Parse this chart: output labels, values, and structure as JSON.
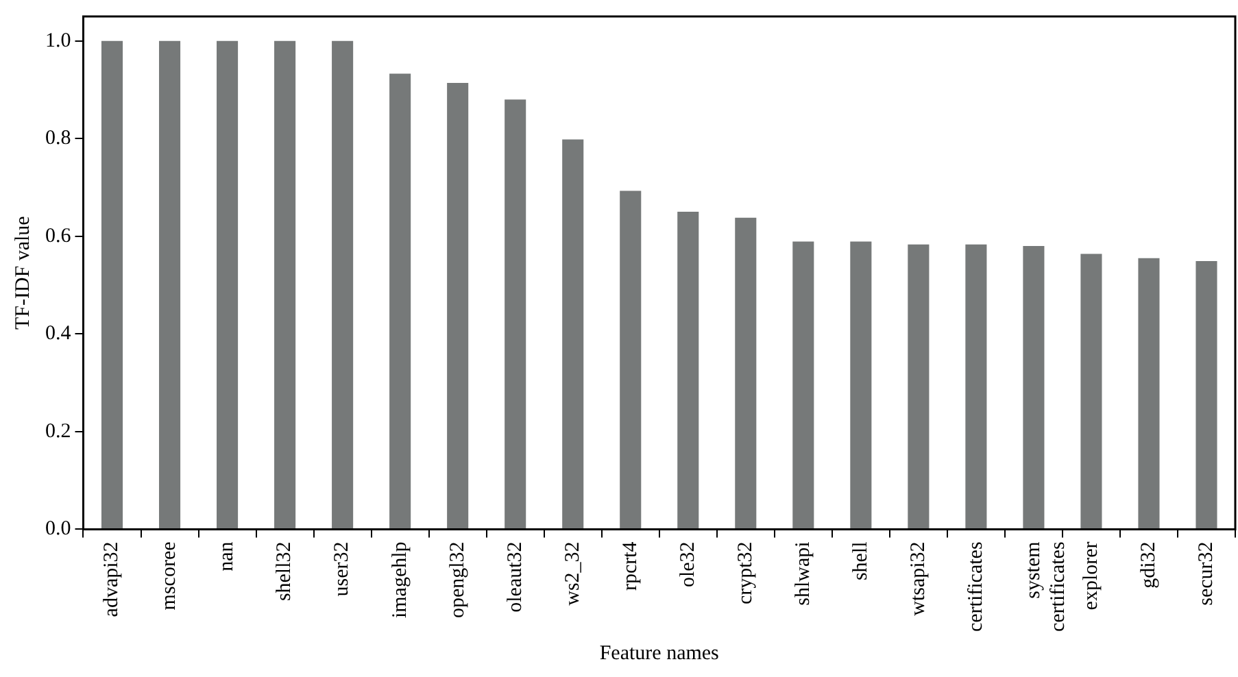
{
  "chart_data": {
    "type": "bar",
    "xlabel": "Feature names",
    "ylabel": "TF-IDF value",
    "categories": [
      "advapi32",
      "mscoree",
      "nan",
      "shell32",
      "user32",
      "imagehlp",
      "opengl32",
      "oleaut32",
      "ws2_32",
      "rpcrt4",
      "ole32",
      "crypt32",
      "shlwapi",
      "shell",
      "wtsapi32",
      "certificates",
      "system certificates",
      "explorer",
      "gdi32",
      "secur32"
    ],
    "values": [
      1.0,
      1.0,
      1.0,
      1.0,
      1.0,
      0.933,
      0.914,
      0.88,
      0.798,
      0.693,
      0.65,
      0.638,
      0.589,
      0.589,
      0.583,
      0.583,
      0.58,
      0.564,
      0.555,
      0.549
    ],
    "color": "#767979",
    "ylim": [
      0,
      1.05
    ],
    "yticks": [
      {
        "value": 0,
        "label": "0.0"
      },
      0.2,
      0.4,
      0.6,
      0.8,
      {
        "value": 1,
        "label": "1.0"
      }
    ],
    "grid": false,
    "legend": false
  }
}
